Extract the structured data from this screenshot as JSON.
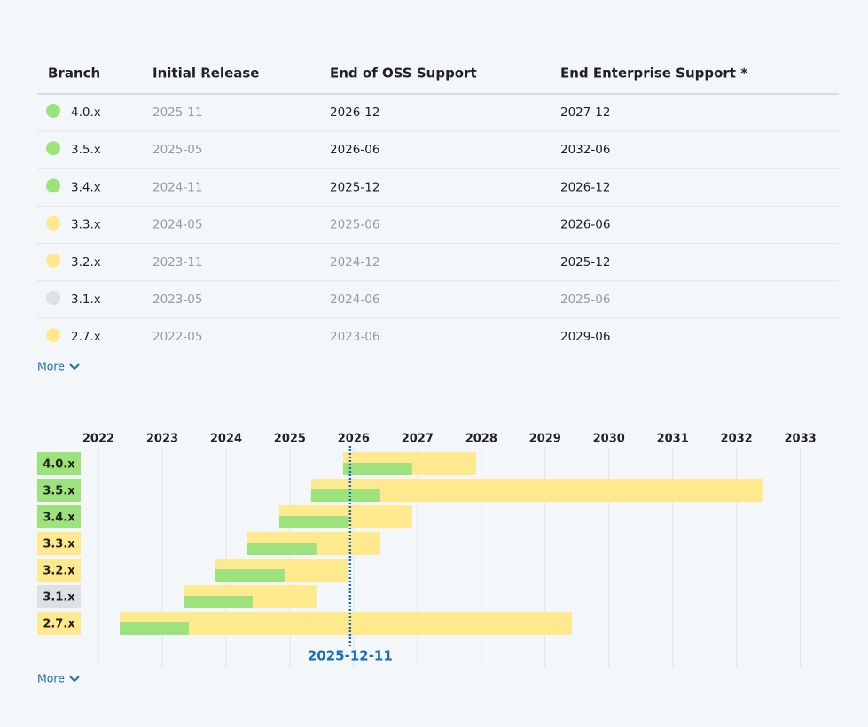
{
  "table": {
    "columns": [
      "Branch",
      "Initial Release",
      "End of OSS Support",
      "End Enterprise Support *"
    ],
    "rows": [
      {
        "color": "#9de27d",
        "branch": "4.0.x",
        "initial": "2025-11",
        "oss_end": "2026-12",
        "enterprise_end": "2027-12"
      },
      {
        "color": "#9de27d",
        "branch": "3.5.x",
        "initial": "2025-05",
        "oss_end": "2026-06",
        "enterprise_end": "2032-06"
      },
      {
        "color": "#9de27d",
        "branch": "3.4.x",
        "initial": "2024-11",
        "oss_end": "2025-12",
        "enterprise_end": "2026-12"
      },
      {
        "color": "#ffe98f",
        "branch": "3.3.x",
        "initial": "2024-05",
        "oss_end": "2025-06",
        "enterprise_end": "2026-06"
      },
      {
        "color": "#ffe98f",
        "branch": "3.2.x",
        "initial": "2023-11",
        "oss_end": "2024-12",
        "enterprise_end": "2025-12"
      },
      {
        "color": "#dde1e4",
        "branch": "3.1.x",
        "initial": "2023-05",
        "oss_end": "2024-06",
        "enterprise_end": "2025-06"
      },
      {
        "color": "#ffe98f",
        "branch": "2.7.x",
        "initial": "2022-05",
        "oss_end": "2023-06",
        "enterprise_end": "2029-06"
      }
    ],
    "more": "More"
  },
  "chart_data": {
    "type": "timeline",
    "xlim": [
      2021.75,
      2033.45
    ],
    "xticks": [
      2022,
      2023,
      2024,
      2025,
      2026,
      2027,
      2028,
      2029,
      2030,
      2031,
      2032,
      2033
    ],
    "grid": true,
    "today": "2025-12-11",
    "oss_color": "#9de27d",
    "enterprise_color": "#ffe98f",
    "more": "More"
  }
}
